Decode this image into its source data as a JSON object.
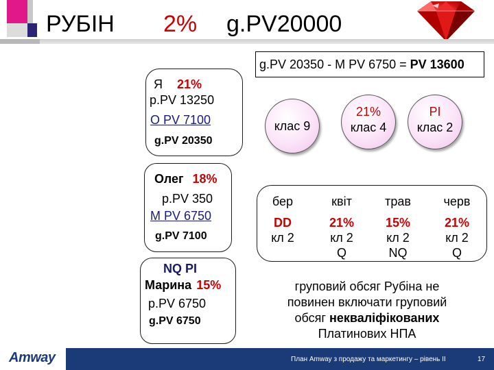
{
  "header": {
    "title": "РУБІН",
    "percent": "2%",
    "gpv": "g.PV20000"
  },
  "formula": {
    "left": "g.PV 20350 - M PV 6750 = ",
    "result": "PV 13600"
  },
  "box_me": {
    "name": "Я",
    "percent": "21%",
    "ppv": "p.PV 13250",
    "opv": "O PV 7100",
    "gpv": "g.PV 20350"
  },
  "box_oleg": {
    "name": "Олег",
    "percent": "18%",
    "ppv": "p.PV 350",
    "mpv": "M PV 6750",
    "gpv": "g.PV 7100"
  },
  "box_marina": {
    "status": "NQ PI",
    "name": "Марина",
    "percent": "15%",
    "ppv": "p.PV 6750",
    "gpv": "g.PV 6750"
  },
  "circles": [
    {
      "line1": "",
      "line2": "клас 9"
    },
    {
      "line1": "21%",
      "line2": "клас 4"
    },
    {
      "line1": "PI",
      "line2": "клас 2"
    }
  ],
  "months": [
    {
      "month": "бер",
      "value": "DD",
      "class": "кл 2",
      "extra": ""
    },
    {
      "month": "квіт",
      "value": "21%",
      "class": "кл 2",
      "extra": "Q"
    },
    {
      "month": "трав",
      "value": "15%",
      "class": "кл 2",
      "extra": "NQ"
    },
    {
      "month": "черв",
      "value": "21%",
      "class": "кл 2",
      "extra": "Q"
    }
  ],
  "note": {
    "line1": "груповий обсяг Рубіна не",
    "line2": "повинен включати груповий",
    "line3_prefix": "обсяг ",
    "line3_bold": "некваліфікованих",
    "line4": "Платинових НПА"
  },
  "footer": {
    "logo": "Amway",
    "caption": "План Amway з продажу та маркетингу – рівень II",
    "page": "17"
  },
  "colors": {
    "accent_red": "#cc0000",
    "square_dark": "#2c2475",
    "square_pink": "#e0188a",
    "square_gray": "#b8b8b8",
    "footer_blue": "#1a3b78",
    "circle_fill": "#f1c4ec"
  }
}
